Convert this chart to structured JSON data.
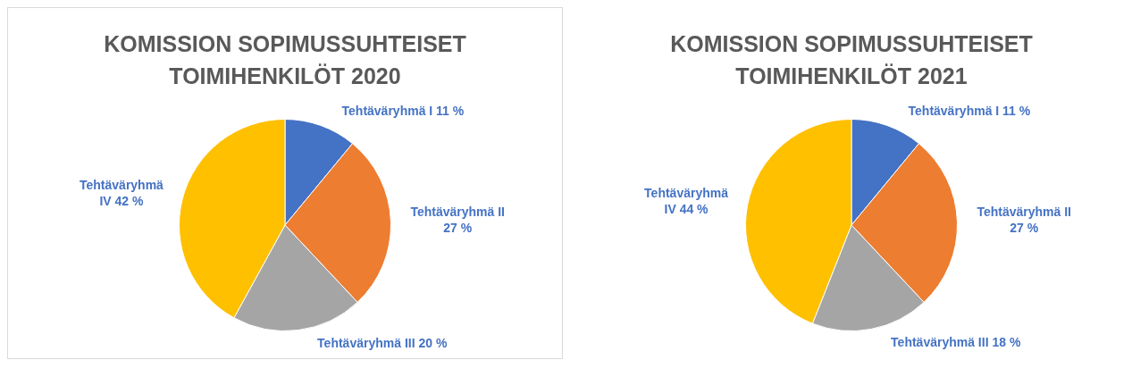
{
  "chart_data": [
    {
      "type": "pie",
      "title": "KOMISSION SOPIMUSSUHTEISET TOIMIHENKILÖT 2020",
      "categories": [
        "Tehtäväryhmä I",
        "Tehtäväryhmä II",
        "Tehtäväryhmä III",
        "Tehtäväryhmä IV"
      ],
      "values": [
        11,
        27,
        20,
        42
      ],
      "value_labels": [
        "11 %",
        "27 %",
        "20 %",
        "42 %"
      ],
      "colors": [
        "#4472c4",
        "#ed7d31",
        "#a5a5a5",
        "#ffc000"
      ],
      "legend": false
    },
    {
      "type": "pie",
      "title": "KOMISSION SOPIMUSSUHTEISET TOIMIHENKILÖT 2021",
      "categories": [
        "Tehtäväryhmä I",
        "Tehtäväryhmä II",
        "Tehtäväryhmä III",
        "Tehtäväryhmä IV"
      ],
      "values": [
        11,
        27,
        18,
        44
      ],
      "value_labels": [
        "11 %",
        "27 %",
        "18 %",
        "44 %"
      ],
      "colors": [
        "#4472c4",
        "#ed7d31",
        "#a5a5a5",
        "#ffc000"
      ],
      "legend": false
    }
  ]
}
